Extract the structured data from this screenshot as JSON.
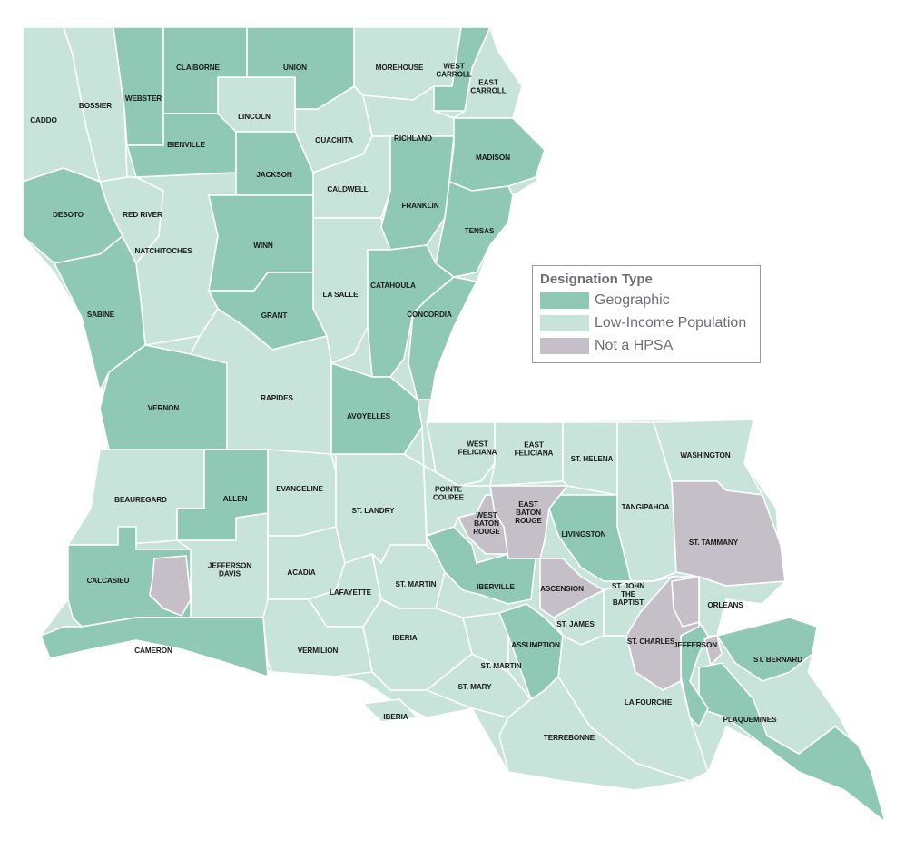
{
  "legend": {
    "title": "Designation Type",
    "items": [
      {
        "label": "Geographic",
        "color": "#8fc9b5"
      },
      {
        "label": "Low-Income Population",
        "color": "#c8e4da"
      },
      {
        "label": "Not a HPSA",
        "color": "#c5c0c8"
      }
    ]
  },
  "parishes": [
    {
      "name": "CADDO",
      "lines": [
        "CADDO"
      ],
      "designation": "Low-Income Population"
    },
    {
      "name": "BOSSIER",
      "lines": [
        "BOSSIER"
      ],
      "designation": "Low-Income Population"
    },
    {
      "name": "MOREHOUSE",
      "lines": [
        "MOREHOUSE"
      ],
      "designation": "Low-Income Population"
    },
    {
      "name": "EAST CARROLL",
      "lines": [
        "EAST",
        "CARROLL"
      ],
      "designation": "Low-Income Population"
    },
    {
      "name": "LINCOLN",
      "lines": [
        "LINCOLN"
      ],
      "designation": "Low-Income Population"
    },
    {
      "name": "OUACHITA",
      "lines": [
        "OUACHITA"
      ],
      "designation": "Low-Income Population"
    },
    {
      "name": "RICHLAND",
      "lines": [
        "RICHLAND"
      ],
      "designation": "Low-Income Population"
    },
    {
      "name": "CALDWELL",
      "lines": [
        "CALDWELL"
      ],
      "designation": "Low-Income Population"
    },
    {
      "name": "RED RIVER",
      "lines": [
        "RED RIVER"
      ],
      "designation": "Low-Income Population"
    },
    {
      "name": "NATCHITOCHES",
      "lines": [
        "NATCHITOCHES"
      ],
      "designation": "Low-Income Population"
    },
    {
      "name": "LA SALLE",
      "lines": [
        "LA SALLE"
      ],
      "designation": "Low-Income Population"
    },
    {
      "name": "RAPIDES",
      "lines": [
        "RAPIDES"
      ],
      "designation": "Low-Income Population"
    },
    {
      "name": "BEAUREGARD",
      "lines": [
        "BEAUREGARD"
      ],
      "designation": "Low-Income Population"
    },
    {
      "name": "EVANGELINE",
      "lines": [
        "EVANGELINE"
      ],
      "designation": "Low-Income Population"
    },
    {
      "name": "ST. LANDRY",
      "lines": [
        "ST. LANDRY"
      ],
      "designation": "Low-Income Population"
    },
    {
      "name": "JEFFERSON DAVIS",
      "lines": [
        "JEFFERSON",
        "DAVIS"
      ],
      "designation": "Low-Income Population"
    },
    {
      "name": "ACADIA",
      "lines": [
        "ACADIA"
      ],
      "designation": "Low-Income Population"
    },
    {
      "name": "LAFAYETTE",
      "lines": [
        "LAFAYETTE"
      ],
      "designation": "Low-Income Population"
    },
    {
      "name": "VERMILION",
      "lines": [
        "VERMILION"
      ],
      "designation": "Low-Income Population"
    },
    {
      "name": "ST. MARTIN",
      "lines": [
        "ST. MARTIN"
      ],
      "designation": "Low-Income Population"
    },
    {
      "name": "IBERIA",
      "lines": [
        "IBERIA"
      ],
      "designation": "Low-Income Population"
    },
    {
      "name": "IBERIA (ISLAND)",
      "lines": [
        "IBERIA"
      ],
      "designation": "Low-Income Population"
    },
    {
      "name": "ST. MARTIN (SOUTH)",
      "lines": [
        "ST. MARTIN"
      ],
      "designation": "Low-Income Population"
    },
    {
      "name": "ST. MARY",
      "lines": [
        "ST. MARY"
      ],
      "designation": "Low-Income Population"
    },
    {
      "name": "WEST FELICIANA",
      "lines": [
        "WEST",
        "FELICIANA"
      ],
      "designation": "Low-Income Population"
    },
    {
      "name": "EAST FELICIANA",
      "lines": [
        "EAST",
        "FELICIANA"
      ],
      "designation": "Low-Income Population"
    },
    {
      "name": "ST. HELENA",
      "lines": [
        "ST. HELENA"
      ],
      "designation": "Low-Income Population"
    },
    {
      "name": "POINTE COUPEE",
      "lines": [
        "POINTE",
        "COUPEE"
      ],
      "designation": "Low-Income Population"
    },
    {
      "name": "TANGIPAHOA",
      "lines": [
        "TANGIPAHOA"
      ],
      "designation": "Low-Income Population"
    },
    {
      "name": "WASHINGTON",
      "lines": [
        "WASHINGTON"
      ],
      "designation": "Low-Income Population"
    },
    {
      "name": "ST. JAMES",
      "lines": [
        "ST. JAMES"
      ],
      "designation": "Low-Income Population"
    },
    {
      "name": "ST. JOHN THE BAPTIST",
      "lines": [
        "ST. JOHN",
        "THE",
        "BAPTIST"
      ],
      "designation": "Low-Income Population"
    },
    {
      "name": "ORLEANS",
      "lines": [
        "ORLEANS"
      ],
      "designation": "Low-Income Population"
    },
    {
      "name": "LA FOURCHE",
      "lines": [
        "LA FOURCHE"
      ],
      "designation": "Low-Income Population"
    },
    {
      "name": "TERREBONNE",
      "lines": [
        "TERREBONNE"
      ],
      "designation": "Low-Income Population"
    },
    {
      "name": "WEBSTER",
      "lines": [
        "WEBSTER"
      ],
      "designation": "Geographic"
    },
    {
      "name": "CLAIBORNE",
      "lines": [
        "CLAIBORNE"
      ],
      "designation": "Geographic"
    },
    {
      "name": "UNION",
      "lines": [
        "UNION"
      ],
      "designation": "Geographic"
    },
    {
      "name": "WEST CARROLL",
      "lines": [
        "WEST",
        "CARROLL"
      ],
      "designation": "Geographic"
    },
    {
      "name": "BIENVILLE",
      "lines": [
        "BIENVILLE"
      ],
      "designation": "Geographic"
    },
    {
      "name": "JACKSON",
      "lines": [
        "JACKSON"
      ],
      "designation": "Geographic"
    },
    {
      "name": "MADISON",
      "lines": [
        "MADISON"
      ],
      "designation": "Geographic"
    },
    {
      "name": "TENSAS",
      "lines": [
        "TENSAS"
      ],
      "designation": "Geographic"
    },
    {
      "name": "FRANKLIN",
      "lines": [
        "FRANKLIN"
      ],
      "designation": "Geographic"
    },
    {
      "name": "DESOTO",
      "lines": [
        "DESOTO"
      ],
      "designation": "Geographic"
    },
    {
      "name": "WINN",
      "lines": [
        "WINN"
      ],
      "designation": "Geographic"
    },
    {
      "name": "GRANT",
      "lines": [
        "GRANT"
      ],
      "designation": "Geographic"
    },
    {
      "name": "SABINE",
      "lines": [
        "SABINE"
      ],
      "designation": "Geographic"
    },
    {
      "name": "CATAHOULA",
      "lines": [
        "CATAHOULA"
      ],
      "designation": "Geographic"
    },
    {
      "name": "CONCORDIA",
      "lines": [
        "CONCORDIA"
      ],
      "designation": "Geographic"
    },
    {
      "name": "VERNON",
      "lines": [
        "VERNON"
      ],
      "designation": "Geographic"
    },
    {
      "name": "AVOYELLES",
      "lines": [
        "AVOYELLES"
      ],
      "designation": "Geographic"
    },
    {
      "name": "ALLEN",
      "lines": [
        "ALLEN"
      ],
      "designation": "Geographic"
    },
    {
      "name": "CALCASIEU",
      "lines": [
        "CALCASIEU"
      ],
      "designation": "Geographic"
    },
    {
      "name": "CAMERON",
      "lines": [
        "CAMERON"
      ],
      "designation": "Geographic"
    },
    {
      "name": "IBERVILLE",
      "lines": [
        "IBERVILLE"
      ],
      "designation": "Geographic"
    },
    {
      "name": "LIVINGSTON",
      "lines": [
        "LIVINGSTON"
      ],
      "designation": "Geographic"
    },
    {
      "name": "ASSUMPTION",
      "lines": [
        "ASSUMPTION"
      ],
      "designation": "Geographic"
    },
    {
      "name": "PLAQUEMINES",
      "lines": [
        "PLAQUEMINES"
      ],
      "designation": "Geographic"
    },
    {
      "name": "ST. BERNARD",
      "lines": [
        "ST. BERNARD"
      ],
      "designation": "Geographic"
    },
    {
      "name": "WEST BATON ROUGE",
      "lines": [
        "WEST",
        "BATON",
        "ROUGE"
      ],
      "designation": "Not a HPSA"
    },
    {
      "name": "EAST BATON ROUGE",
      "lines": [
        "EAST",
        "BATON",
        "ROUGE"
      ],
      "designation": "Not a HPSA"
    },
    {
      "name": "ASCENSION",
      "lines": [
        "ASCENSION"
      ],
      "designation": "Not a HPSA"
    },
    {
      "name": "ST. CHARLES",
      "lines": [
        "ST. CHARLES"
      ],
      "designation": "Not a HPSA"
    },
    {
      "name": "ST. TAMMANY",
      "lines": [
        "ST. TAMMANY"
      ],
      "designation": "Not a HPSA"
    },
    {
      "name": "JEFFERSON",
      "lines": [
        "JEFFERSON"
      ],
      "designation": "Geographic"
    }
  ]
}
